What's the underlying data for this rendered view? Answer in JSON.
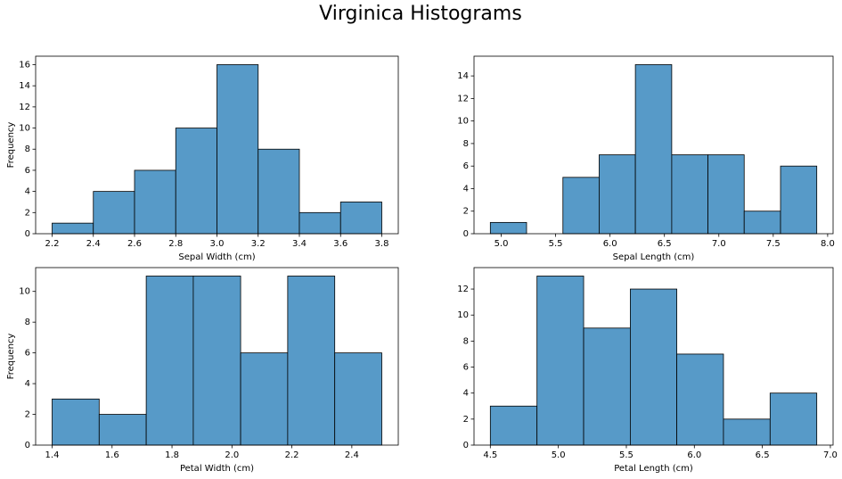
{
  "title": "Virginica Histograms",
  "chart_data": [
    {
      "type": "histogram",
      "xlabel": "Sepal Width (cm)",
      "ylabel": "Frequency",
      "color": "#579ac8",
      "bins": [
        2.2,
        2.4,
        2.6,
        2.8,
        3.0,
        3.2,
        3.4,
        3.6,
        3.8
      ],
      "values": [
        1,
        4,
        6,
        10,
        16,
        8,
        2,
        3
      ],
      "xlim": [
        2.12,
        3.88
      ],
      "ylim": [
        0,
        16.8
      ],
      "xticks": [
        2.2,
        2.4,
        2.6,
        2.8,
        {
          "value": 3,
          "label": "3.0"
        },
        3.2,
        3.4,
        3.6,
        3.8
      ],
      "yticks": [
        0,
        2,
        4,
        6,
        8,
        10,
        12,
        14,
        16
      ]
    },
    {
      "type": "histogram",
      "xlabel": "Sepal Length (cm)",
      "color": "#579ac8",
      "bins": [
        4.9,
        5.233,
        5.567,
        5.9,
        6.233,
        6.567,
        6.9,
        7.233,
        7.567,
        7.9
      ],
      "values": [
        1,
        0,
        5,
        7,
        15,
        7,
        7,
        2,
        6
      ],
      "xlim": [
        4.75,
        8.05
      ],
      "ylim": [
        0,
        15.75
      ],
      "xticks": [
        {
          "value": 5,
          "label": "5.0"
        },
        5.5,
        {
          "value": 6,
          "label": "6.0"
        },
        6.5,
        {
          "value": 7,
          "label": "7.0"
        },
        7.5,
        {
          "value": 8,
          "label": "8.0"
        }
      ],
      "yticks": [
        0,
        2,
        4,
        6,
        8,
        10,
        12,
        14
      ]
    },
    {
      "type": "histogram",
      "xlabel": "Petal Width (cm)",
      "ylabel": "Frequency",
      "color": "#579ac8",
      "bins": [
        1.4,
        1.557,
        1.714,
        1.871,
        2.029,
        2.186,
        2.343,
        2.5
      ],
      "values": [
        3,
        2,
        11,
        11,
        6,
        11,
        6
      ],
      "xlim": [
        1.345,
        2.555
      ],
      "ylim": [
        0,
        11.55
      ],
      "xticks": [
        1.4,
        1.6,
        1.8,
        {
          "value": 2,
          "label": "2.0"
        },
        2.2,
        2.4
      ],
      "yticks": [
        0,
        2,
        4,
        6,
        8,
        10
      ]
    },
    {
      "type": "histogram",
      "xlabel": "Petal Length (cm)",
      "color": "#579ac8",
      "bins": [
        4.5,
        4.843,
        5.186,
        5.529,
        5.871,
        6.214,
        6.557,
        6.9
      ],
      "values": [
        3,
        13,
        9,
        12,
        7,
        2,
        4
      ],
      "xlim": [
        4.38,
        7.02
      ],
      "ylim": [
        0,
        13.65
      ],
      "xticks": [
        4.5,
        {
          "value": 5,
          "label": "5.0"
        },
        5.5,
        {
          "value": 6,
          "label": "6.0"
        },
        6.5,
        {
          "value": 7,
          "label": "7.0"
        }
      ],
      "yticks": [
        0,
        2,
        4,
        6,
        8,
        10,
        12
      ]
    }
  ]
}
